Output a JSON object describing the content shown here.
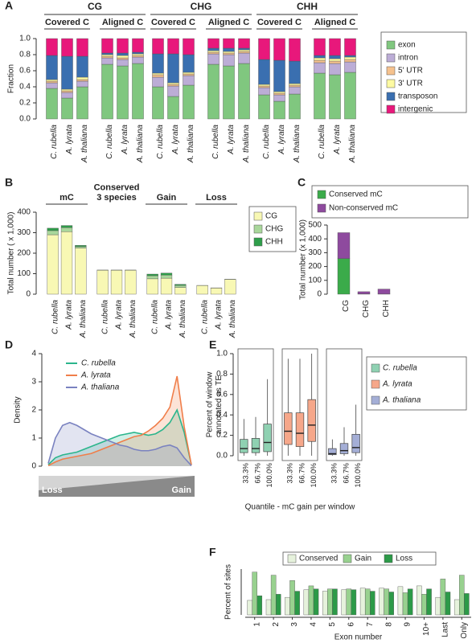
{
  "chart_data": [
    {
      "panel": "A",
      "type": "stacked_bar",
      "ylabel": "Fraction",
      "ylim": [
        0,
        1
      ],
      "yticks": [
        {
          "value": 0,
          "label": "0.0"
        },
        {
          "value": 0.2,
          "label": "0.2"
        },
        {
          "value": 0.4,
          "label": "0.4"
        },
        {
          "value": 0.6,
          "label": "0.6"
        },
        {
          "value": 0.8,
          "label": "0.8"
        },
        {
          "value": 1,
          "label": "1.0"
        }
      ],
      "groups": [
        {
          "name": "CG",
          "subgroups": [
            "Covered C",
            "Aligned C"
          ]
        },
        {
          "name": "CHG",
          "subgroups": [
            "Covered C",
            "Aligned C"
          ]
        },
        {
          "name": "CHH",
          "subgroups": [
            "Covered C",
            "Aligned C"
          ]
        }
      ],
      "categories": [
        "C. rubella",
        "A. lyrata",
        "A. thaliana",
        "C. rubella",
        "A. lyrata",
        "A. thaliana",
        "C. rubella",
        "A. lyrata",
        "A. thaliana",
        "C. rubella",
        "A. lyrata",
        "A. thaliana",
        "C. rubella",
        "A. lyrata",
        "A. thaliana",
        "C. rubella",
        "A. lyrata",
        "A. thaliana"
      ],
      "series": [
        {
          "name": "exon",
          "color": "#80c77f",
          "values": [
            0.38,
            0.26,
            0.4,
            0.68,
            0.66,
            0.69,
            0.4,
            0.28,
            0.42,
            0.68,
            0.66,
            0.69,
            0.3,
            0.22,
            0.31,
            0.57,
            0.55,
            0.58
          ]
        },
        {
          "name": "intron",
          "color": "#bcadd6",
          "values": [
            0.07,
            0.07,
            0.07,
            0.08,
            0.08,
            0.08,
            0.12,
            0.13,
            0.12,
            0.13,
            0.14,
            0.13,
            0.09,
            0.08,
            0.09,
            0.13,
            0.14,
            0.13
          ]
        },
        {
          "name": "5' UTR",
          "color": "#f6c28e",
          "values": [
            0.02,
            0.02,
            0.02,
            0.02,
            0.02,
            0.02,
            0.03,
            0.02,
            0.02,
            0.02,
            0.02,
            0.02,
            0.02,
            0.02,
            0.02,
            0.03,
            0.03,
            0.03
          ]
        },
        {
          "name": "3' UTR",
          "color": "#fdfaa2",
          "values": [
            0.02,
            0.02,
            0.03,
            0.02,
            0.03,
            0.02,
            0.02,
            0.02,
            0.02,
            0.02,
            0.02,
            0.02,
            0.02,
            0.02,
            0.02,
            0.03,
            0.03,
            0.03
          ]
        },
        {
          "name": "transposon",
          "color": "#3a6fb0",
          "values": [
            0.3,
            0.41,
            0.26,
            0.02,
            0.03,
            0.02,
            0.24,
            0.36,
            0.22,
            0.03,
            0.04,
            0.02,
            0.31,
            0.39,
            0.28,
            0.03,
            0.04,
            0.02
          ]
        },
        {
          "name": "intergenic",
          "color": "#e8187b",
          "values": [
            0.21,
            0.22,
            0.22,
            0.18,
            0.18,
            0.17,
            0.19,
            0.19,
            0.2,
            0.12,
            0.12,
            0.12,
            0.26,
            0.27,
            0.28,
            0.21,
            0.21,
            0.21
          ]
        }
      ]
    },
    {
      "panel": "B",
      "type": "stacked_bar",
      "ylabel": "Total number ( x 1,000)",
      "ylim": [
        0,
        400
      ],
      "yticks": [
        0,
        100,
        200,
        300,
        400
      ],
      "groups": [
        "mC",
        [
          "Conserved",
          "3 species"
        ],
        "Gain",
        "Loss"
      ],
      "categories": [
        "C. rubella",
        "A. lyrata",
        "A. thaliana",
        "C. rubella",
        "A. lyrata",
        "A. thaliana",
        "C. rubella",
        "A. lyrata",
        "A. thaliana",
        "C. rubella",
        "A. lyrata",
        "A. thaliana"
      ],
      "series": [
        {
          "name": "CG",
          "color": "#f8f8b4",
          "values": [
            290,
            305,
            225,
            117,
            117,
            117,
            75,
            78,
            33,
            42,
            30,
            72
          ]
        },
        {
          "name": "CHG",
          "color": "#a9d79b",
          "values": [
            20,
            20,
            7,
            1,
            1,
            1,
            15,
            15,
            10,
            1,
            1,
            1
          ]
        },
        {
          "name": "CHH",
          "color": "#2e9e4a",
          "values": [
            12,
            10,
            6,
            0,
            0,
            0,
            8,
            10,
            5,
            0,
            0,
            0
          ]
        }
      ]
    },
    {
      "panel": "C",
      "type": "stacked_bar",
      "ylabel": "Total number (x 1,000)",
      "ylim": [
        0,
        500
      ],
      "yticks": [
        0,
        100,
        200,
        300,
        400,
        500
      ],
      "categories": [
        "CG",
        "CHG",
        "CHH"
      ],
      "series": [
        {
          "name": "Conserved mC",
          "color": "#3bab4a",
          "values": [
            258,
            2,
            1
          ]
        },
        {
          "name": "Non-conserved mC",
          "color": "#8e4a9e",
          "values": [
            187,
            16,
            36
          ]
        }
      ]
    },
    {
      "panel": "D",
      "type": "density",
      "ylabel": "Density",
      "ylim": [
        0,
        4
      ],
      "yticks": [
        0,
        1,
        2,
        3,
        4
      ],
      "xlim": [
        0,
        1
      ],
      "x_ends": [
        "Loss",
        "Gain"
      ],
      "x": [
        0,
        0.05,
        0.1,
        0.15,
        0.2,
        0.25,
        0.3,
        0.35,
        0.4,
        0.45,
        0.5,
        0.55,
        0.6,
        0.65,
        0.7,
        0.75,
        0.8,
        0.85,
        0.9,
        0.95,
        1
      ],
      "series": [
        {
          "name": "C. rubella",
          "color": "#2bb58c",
          "values": [
            0.05,
            0.3,
            0.4,
            0.45,
            0.5,
            0.6,
            0.7,
            0.8,
            0.9,
            1.0,
            1.1,
            1.15,
            1.2,
            1.15,
            1.1,
            1.15,
            1.3,
            1.55,
            2.0,
            1.2,
            0.05
          ]
        },
        {
          "name": "A. lyrata",
          "color": "#f07e4a",
          "values": [
            0.02,
            0.15,
            0.25,
            0.3,
            0.35,
            0.4,
            0.45,
            0.55,
            0.65,
            0.75,
            0.85,
            0.95,
            1.05,
            1.1,
            1.25,
            1.45,
            1.7,
            2.1,
            3.2,
            1.4,
            0.05
          ]
        },
        {
          "name": "A. thaliana",
          "color": "#7a82c0",
          "values": [
            0.1,
            1.0,
            1.45,
            1.55,
            1.45,
            1.3,
            1.15,
            1.05,
            0.95,
            0.85,
            0.75,
            0.7,
            0.6,
            0.55,
            0.55,
            0.6,
            0.7,
            0.75,
            0.65,
            0.3,
            0.02
          ]
        }
      ]
    },
    {
      "panel": "E",
      "type": "box",
      "ylabel": [
        "Percent of window",
        "annotated as TE"
      ],
      "xlabel": "Quantile - mC gain per window",
      "ylim": [
        0,
        1
      ],
      "yticks": [
        {
          "value": 0,
          "label": "0.0"
        },
        {
          "value": 0.2,
          "label": "0.2"
        },
        {
          "value": 0.4,
          "label": "0.4"
        },
        {
          "value": 0.6,
          "label": "0.6"
        },
        {
          "value": 0.8,
          "label": "0.8"
        },
        {
          "value": 1,
          "label": "1.0"
        }
      ],
      "categories": [
        "33.3%",
        "66.7%",
        "100.0%"
      ],
      "series": [
        {
          "name": "C. rubella",
          "color": "#8fd1b2",
          "values": [
            [
              0,
              0.03,
              0.07,
              0.16,
              0.36
            ],
            [
              0,
              0.03,
              0.07,
              0.17,
              0.38
            ],
            [
              0,
              0.04,
              0.13,
              0.31,
              0.75
            ]
          ]
        },
        {
          "name": "A. lyrata",
          "color": "#f6a78a",
          "values": [
            [
              0,
              0.11,
              0.24,
              0.42,
              0.95
            ],
            [
              0,
              0.09,
              0.22,
              0.42,
              0.95
            ],
            [
              0,
              0.14,
              0.3,
              0.55,
              1.0
            ]
          ]
        },
        {
          "name": "A. thaliana",
          "color": "#a4aed6",
          "values": [
            [
              0,
              0.01,
              0.02,
              0.07,
              0.16
            ],
            [
              0,
              0.02,
              0.05,
              0.12,
              0.28
            ],
            [
              0,
              0.03,
              0.08,
              0.21,
              0.5
            ]
          ]
        }
      ]
    },
    {
      "panel": "F",
      "type": "grouped_bar",
      "ylabel": "Percent of sites",
      "xlabel": "Exon number",
      "ylim": [
        0,
        0.6
      ],
      "categories": [
        "1",
        "2",
        "3",
        "4",
        "5",
        "6",
        "7",
        "8",
        "9",
        "10+",
        "Last",
        "Only"
      ],
      "series": [
        {
          "name": "Conserved",
          "color": "#e6f2dc",
          "values": [
            0.19,
            0.2,
            0.23,
            0.33,
            0.31,
            0.33,
            0.35,
            0.35,
            0.37,
            0.38,
            0.23,
            0.2
          ]
        },
        {
          "name": "Gain",
          "color": "#98d18f",
          "values": [
            0.56,
            0.52,
            0.45,
            0.38,
            0.34,
            0.34,
            0.34,
            0.34,
            0.29,
            0.27,
            0.47,
            0.52
          ]
        },
        {
          "name": "Loss",
          "color": "#2c9a48",
          "values": [
            0.25,
            0.27,
            0.31,
            0.34,
            0.34,
            0.33,
            0.31,
            0.3,
            0.34,
            0.34,
            0.3,
            0.28
          ]
        }
      ]
    }
  ]
}
